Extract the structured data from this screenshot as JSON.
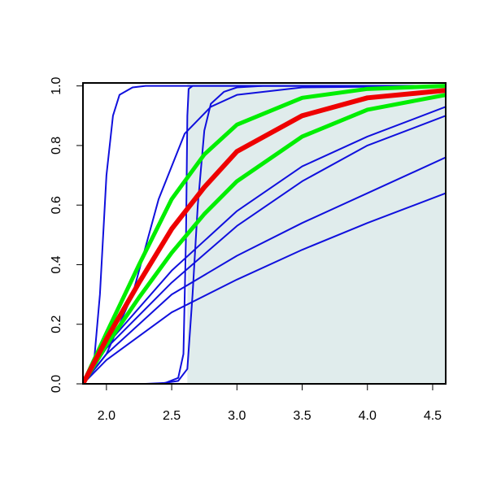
{
  "chart_data": {
    "type": "line",
    "xlim": [
      1.82,
      4.6
    ],
    "ylim": [
      0,
      1.01
    ],
    "xticks": [
      {
        "value": 2.0,
        "label": "2.0"
      },
      2.5,
      {
        "value": 3.0,
        "label": "3.0"
      },
      3.5,
      {
        "value": 4.0,
        "label": "4.0"
      },
      4.5
    ],
    "yticks": [
      {
        "value": 0,
        "label": "0.0"
      },
      0.2,
      0.4,
      0.6,
      0.8,
      {
        "value": 1.0,
        "label": "1.0"
      }
    ],
    "shaded_region": {
      "x": [
        2.62,
        4.6
      ],
      "color": "#e0ecec"
    },
    "series": [
      {
        "color": "#1010dd",
        "width": 2,
        "x": [
          1.82,
          1.9,
          1.95,
          2.0,
          2.05,
          2.1,
          2.2,
          2.3,
          4.6
        ],
        "values": [
          0,
          0.05,
          0.3,
          0.7,
          0.9,
          0.97,
          0.995,
          1.0,
          1.0
        ]
      },
      {
        "color": "#1010dd",
        "width": 2,
        "x": [
          2.3,
          2.45,
          2.55,
          2.59,
          2.61,
          2.62,
          2.63,
          2.66,
          4.6
        ],
        "values": [
          0,
          0.003,
          0.02,
          0.1,
          0.5,
          0.9,
          0.99,
          1.0,
          1.0
        ]
      },
      {
        "color": "#1010dd",
        "width": 2,
        "x": [
          2.4,
          2.55,
          2.62,
          2.66,
          2.7,
          2.75,
          2.8,
          2.9,
          3.0,
          3.2,
          4.6
        ],
        "values": [
          0,
          0.01,
          0.05,
          0.3,
          0.6,
          0.85,
          0.94,
          0.98,
          0.995,
          1.0,
          1.0
        ]
      },
      {
        "color": "#1010dd",
        "width": 2,
        "x": [
          1.82,
          2.0,
          2.2,
          2.4,
          2.6,
          2.8,
          3.0,
          3.5,
          4.6
        ],
        "values": [
          0,
          0.1,
          0.3,
          0.62,
          0.84,
          0.93,
          0.97,
          0.995,
          1.0
        ]
      },
      {
        "color": "#1010dd",
        "width": 2,
        "x": [
          1.82,
          2.0,
          2.5,
          3.0,
          3.5,
          4.0,
          4.6
        ],
        "values": [
          0,
          0.13,
          0.38,
          0.58,
          0.73,
          0.83,
          0.93
        ]
      },
      {
        "color": "#1010dd",
        "width": 2,
        "x": [
          1.82,
          2.0,
          2.5,
          3.0,
          3.5,
          4.0,
          4.6
        ],
        "values": [
          0,
          0.12,
          0.34,
          0.53,
          0.68,
          0.8,
          0.9
        ]
      },
      {
        "color": "#1010dd",
        "width": 2,
        "x": [
          1.82,
          2.0,
          2.5,
          3.0,
          3.5,
          4.0,
          4.6
        ],
        "values": [
          0,
          0.1,
          0.3,
          0.43,
          0.54,
          0.64,
          0.76
        ]
      },
      {
        "color": "#1010dd",
        "width": 2,
        "x": [
          1.82,
          2.0,
          2.5,
          3.0,
          3.5,
          4.0,
          4.6
        ],
        "values": [
          0,
          0.08,
          0.24,
          0.35,
          0.45,
          0.54,
          0.64
        ]
      },
      {
        "color": "#00ee00",
        "width": 5,
        "x": [
          1.82,
          2.0,
          2.25,
          2.5,
          2.75,
          3.0,
          3.5,
          4.0,
          4.6
        ],
        "values": [
          0,
          0.17,
          0.4,
          0.62,
          0.77,
          0.87,
          0.96,
          0.99,
          1.0
        ]
      },
      {
        "color": "#00ee00",
        "width": 5,
        "x": [
          1.82,
          2.0,
          2.25,
          2.5,
          2.75,
          3.0,
          3.5,
          4.0,
          4.6
        ],
        "values": [
          0,
          0.13,
          0.29,
          0.44,
          0.57,
          0.68,
          0.83,
          0.92,
          0.97
        ]
      },
      {
        "color": "#ee0000",
        "width": 6,
        "x": [
          1.82,
          2.0,
          2.25,
          2.5,
          2.75,
          3.0,
          3.5,
          4.0,
          4.6
        ],
        "values": [
          0,
          0.15,
          0.34,
          0.52,
          0.66,
          0.78,
          0.9,
          0.96,
          0.985
        ]
      }
    ]
  }
}
